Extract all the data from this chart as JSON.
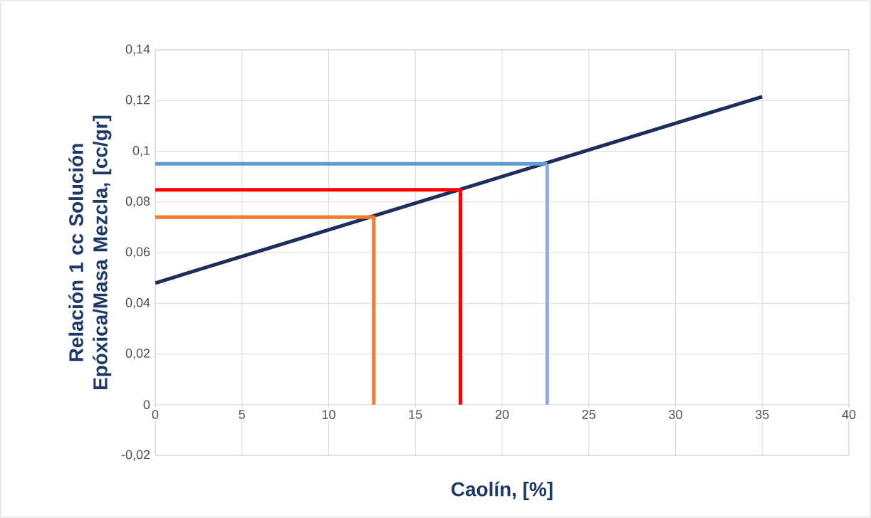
{
  "chart_data": {
    "type": "line",
    "xlabel": "Caolín, [%]",
    "ylabel": "Relación 1 cc Solución Epóxica/Masa Mezcla, [cc/gr]",
    "series": [
      {
        "x": [
          0,
          35
        ],
        "values": [
          0.048,
          0.1215
        ],
        "color": "#1f2d5a"
      },
      {
        "x": [
          0,
          12.6,
          12.6
        ],
        "values": [
          0.074,
          0.074,
          0
        ],
        "color": "#ed7d31"
      },
      {
        "x": [
          0,
          17.6,
          17.6
        ],
        "values": [
          0.0848,
          0.0848,
          0
        ],
        "color": "#ff0000"
      },
      {
        "x": [
          0,
          22.6
        ],
        "values": [
          0.095,
          0.095
        ],
        "color": "#5b9bd5"
      },
      {
        "x": [
          22.6,
          22.6
        ],
        "values": [
          0.095,
          0
        ],
        "color": "#8faadc"
      }
    ],
    "xlim": [
      0,
      40
    ],
    "ylim": [
      -0.02,
      0.14
    ],
    "xticks": [
      0,
      5,
      10,
      15,
      20,
      25,
      30,
      35,
      40
    ],
    "yticks": [
      {
        "value": -0.02,
        "label": "-0,02"
      },
      0,
      {
        "value": 0.02,
        "label": "0,02"
      },
      {
        "value": 0.04,
        "label": "0,04"
      },
      {
        "value": 0.06,
        "label": "0,06"
      },
      {
        "value": 0.08,
        "label": "0,08"
      },
      {
        "value": 0.1,
        "label": "0,1"
      },
      {
        "value": 0.12,
        "label": "0,12"
      },
      {
        "value": 0.14,
        "label": "0,14"
      }
    ],
    "grid": true,
    "marker": "none",
    "line_style": "solid"
  }
}
